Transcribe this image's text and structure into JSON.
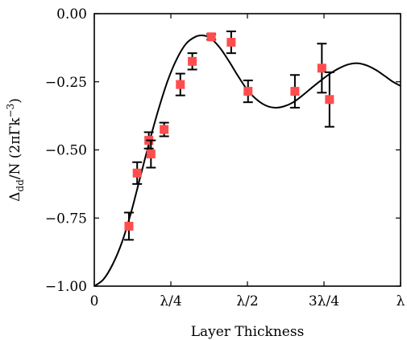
{
  "chart_data": {
    "type": "scatter",
    "xlabel": "Layer Thickness",
    "ylabel": "Δdd/N (2πΓk⁻³)",
    "ylabel_parts": {
      "main": "Δ",
      "sub": "dd",
      "rest": "/N (2πΓk",
      "sup": "−3",
      "close": ")"
    },
    "xlim": [
      0,
      1
    ],
    "ylim": [
      -1.0,
      0.0
    ],
    "x_unit": "λ",
    "xticks": [
      {
        "value": 0,
        "label": "0"
      },
      {
        "value": 0.25,
        "label": "λ/4"
      },
      {
        "value": 0.5,
        "label": "λ/2"
      },
      {
        "value": 0.75,
        "label": "3λ/4"
      },
      {
        "value": 1.0,
        "label": "λ"
      }
    ],
    "yticks": [
      {
        "value": 0.0,
        "label": "0.00"
      },
      {
        "value": -0.25,
        "label": "−0.25"
      },
      {
        "value": -0.5,
        "label": "−0.50"
      },
      {
        "value": -0.75,
        "label": "−0.75"
      },
      {
        "value": -1.0,
        "label": "−1.00"
      }
    ],
    "grid": false,
    "series": [
      {
        "kind": "line",
        "color": "#000000",
        "points": [
          [
            0.0,
            -1.0
          ],
          [
            0.03,
            -0.975
          ],
          [
            0.06,
            -0.92
          ],
          [
            0.09,
            -0.84
          ],
          [
            0.12,
            -0.73
          ],
          [
            0.15,
            -0.6
          ],
          [
            0.18,
            -0.47
          ],
          [
            0.21,
            -0.35
          ],
          [
            0.24,
            -0.245
          ],
          [
            0.27,
            -0.165
          ],
          [
            0.3,
            -0.11
          ],
          [
            0.33,
            -0.085
          ],
          [
            0.355,
            -0.08
          ],
          [
            0.38,
            -0.09
          ],
          [
            0.41,
            -0.125
          ],
          [
            0.44,
            -0.175
          ],
          [
            0.47,
            -0.23
          ],
          [
            0.5,
            -0.28
          ],
          [
            0.53,
            -0.315
          ],
          [
            0.56,
            -0.337
          ],
          [
            0.59,
            -0.345
          ],
          [
            0.62,
            -0.34
          ],
          [
            0.65,
            -0.325
          ],
          [
            0.68,
            -0.3
          ],
          [
            0.71,
            -0.272
          ],
          [
            0.74,
            -0.245
          ],
          [
            0.77,
            -0.22
          ],
          [
            0.8,
            -0.2
          ],
          [
            0.83,
            -0.186
          ],
          [
            0.86,
            -0.182
          ],
          [
            0.89,
            -0.19
          ],
          [
            0.92,
            -0.207
          ],
          [
            0.95,
            -0.23
          ],
          [
            0.975,
            -0.25
          ],
          [
            1.0,
            -0.265
          ]
        ]
      },
      {
        "kind": "errorbar",
        "color": "#ff4d4d",
        "ecolor": "#000000",
        "points": [
          {
            "x": 0.113,
            "y": -0.78,
            "err": 0.05
          },
          {
            "x": 0.14,
            "y": -0.585,
            "err": 0.04
          },
          {
            "x": 0.178,
            "y": -0.465,
            "err": 0.03
          },
          {
            "x": 0.185,
            "y": -0.515,
            "err": 0.05
          },
          {
            "x": 0.228,
            "y": -0.425,
            "err": 0.025
          },
          {
            "x": 0.281,
            "y": -0.26,
            "err": 0.04
          },
          {
            "x": 0.32,
            "y": -0.175,
            "err": 0.03
          },
          {
            "x": 0.382,
            "y": -0.085,
            "err": 0.01
          },
          {
            "x": 0.447,
            "y": -0.105,
            "err": 0.04
          },
          {
            "x": 0.502,
            "y": -0.285,
            "err": 0.04
          },
          {
            "x": 0.655,
            "y": -0.285,
            "err": 0.06
          },
          {
            "x": 0.743,
            "y": -0.2,
            "err": 0.09
          },
          {
            "x": 0.768,
            "y": -0.315,
            "err": 0.1
          }
        ]
      }
    ]
  }
}
